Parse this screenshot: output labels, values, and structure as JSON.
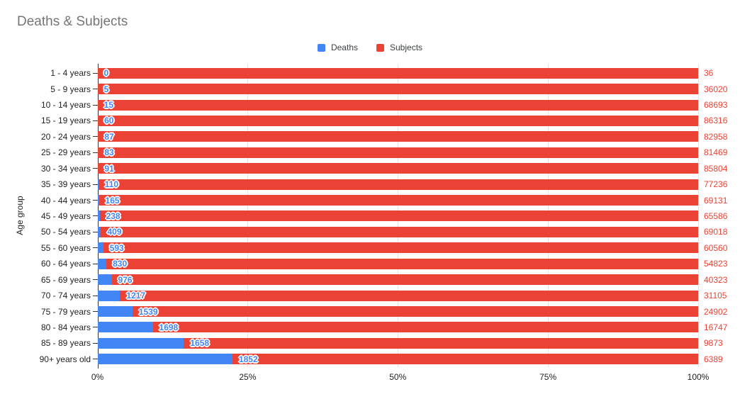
{
  "title": "Deaths & Subjects",
  "chart_data": {
    "type": "bar",
    "orientation": "horizontal",
    "stacked": "percent",
    "title": "Deaths & Subjects",
    "ylabel": "Age group",
    "xlabel": "",
    "legend_position": "top",
    "grid": true,
    "x_axis": {
      "range": [
        0,
        100
      ],
      "tick_labels": [
        "0%",
        "25%",
        "50%",
        "75%",
        "100%"
      ],
      "tick_values": [
        0,
        25,
        50,
        75,
        100
      ]
    },
    "categories": [
      "1 - 4 years",
      "5 - 9 years",
      "10 - 14 years",
      "15 - 19 years",
      "20 - 24 years",
      "25 - 29 years",
      "30 - 34 years",
      "35 - 39 years",
      "40 - 44 years",
      "45 - 49 years",
      "50 - 54 years",
      "55 - 60 years",
      "60 - 64 years",
      "65 - 69 years",
      "70 - 74 years",
      "75 - 79 years",
      "80 - 84 years",
      "85 - 89 years",
      "90+ years old"
    ],
    "series": [
      {
        "name": "Deaths",
        "color": "#4285f4",
        "label_color": "#4285f4",
        "values": [
          0,
          5,
          15,
          60,
          87,
          83,
          91,
          110,
          165,
          238,
          409,
          593,
          830,
          976,
          1217,
          1539,
          1698,
          1658,
          1852
        ]
      },
      {
        "name": "Subjects",
        "color": "#ea4335",
        "label_color": "#ea4335",
        "values": [
          36,
          36020,
          68693,
          86316,
          82958,
          81469,
          85804,
          77236,
          69131,
          65586,
          69018,
          60560,
          54823,
          40323,
          31105,
          24902,
          16747,
          9873,
          6389
        ]
      }
    ]
  }
}
